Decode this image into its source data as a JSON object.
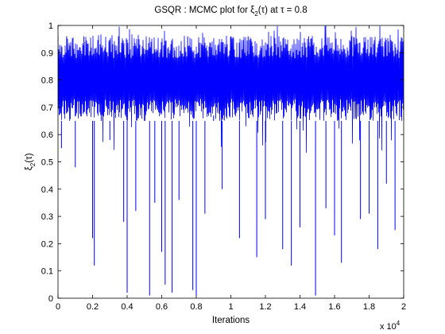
{
  "chart_data": {
    "type": "line",
    "title": "GSQR : MCMC plot for ξ2(τ) at τ = 0.8",
    "title_parts": {
      "prefix": "GSQR : MCMC plot for ξ",
      "sub": "2",
      "suffix": "(τ) at τ = 0.8"
    },
    "xlabel": "Iterations",
    "ylabel": "ξ2(τ)",
    "ylabel_parts": {
      "base": "ξ",
      "sub": "2",
      "suffix": "(τ)"
    },
    "x_exponent_label": {
      "base": "x 10",
      "exp": "4"
    },
    "xlim": [
      0,
      2
    ],
    "ylim": [
      0,
      1
    ],
    "xticks": [
      0,
      0.2,
      0.4,
      0.6,
      0.8,
      1,
      1.2,
      1.4,
      1.6,
      1.8,
      2
    ],
    "xtick_labels": [
      "0",
      "0.2",
      "0.4",
      "0.6",
      "0.8",
      "1",
      "1.2",
      "1.4",
      "1.6",
      "1.8",
      "2"
    ],
    "yticks": [
      0,
      0.1,
      0.2,
      0.3,
      0.4,
      0.5,
      0.6,
      0.7,
      0.8,
      0.9,
      1
    ],
    "ytick_labels": [
      "0",
      "0.1",
      "0.2",
      "0.3",
      "0.4",
      "0.5",
      "0.6",
      "0.7",
      "0.8",
      "0.9",
      "1"
    ],
    "grid": false,
    "series": [
      {
        "color": "#0000ff",
        "n_iterations": 20000,
        "band_range": [
          0.65,
          0.96
        ],
        "typical_level": 0.78,
        "x": [
          0,
          0.02,
          0.05,
          0.1,
          0.15,
          0.2,
          0.21,
          0.25,
          0.3,
          0.35,
          0.38,
          0.4,
          0.45,
          0.5,
          0.53,
          0.56,
          0.6,
          0.62,
          0.66,
          0.7,
          0.75,
          0.78,
          0.8,
          0.85,
          0.9,
          0.95,
          1.0,
          1.05,
          1.1,
          1.15,
          1.2,
          1.25,
          1.3,
          1.35,
          1.4,
          1.45,
          1.49,
          1.55,
          1.6,
          1.64,
          1.7,
          1.75,
          1.8,
          1.85,
          1.9,
          1.95,
          2.0
        ],
        "y": [
          0.83,
          0.55,
          0.87,
          0.48,
          0.8,
          0.22,
          0.12,
          0.75,
          0.58,
          0.93,
          0.28,
          0.02,
          0.32,
          0.7,
          0.01,
          0.35,
          0.17,
          0.05,
          0.02,
          0.36,
          0.88,
          0.03,
          0.01,
          0.31,
          0.67,
          0.4,
          0.82,
          0.22,
          0.87,
          0.15,
          0.29,
          0.84,
          0.18,
          0.12,
          0.26,
          0.82,
          0.01,
          0.33,
          0.23,
          0.13,
          0.9,
          0.29,
          0.31,
          0.18,
          0.42,
          0.25,
          0.73
        ]
      }
    ]
  }
}
